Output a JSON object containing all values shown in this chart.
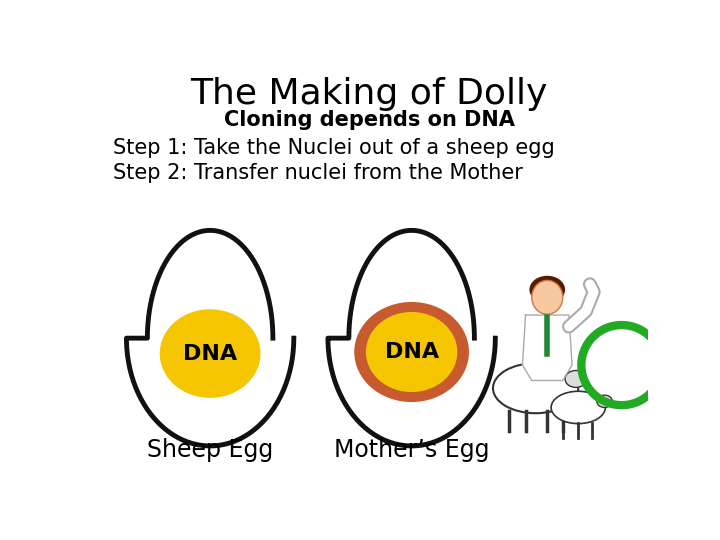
{
  "title": "The Making of Dolly",
  "subtitle": "Cloning depends on DNA",
  "step1": "Step 1: Take the Nuclei out of a sheep egg",
  "step2": "Step 2: Transfer nuclei from the Mother",
  "sheep_egg_label": "Sheep Egg",
  "mother_egg_label": "Mother’s Egg",
  "dna_label": "DNA",
  "background_color": "#ffffff",
  "egg_border_color": "#111111",
  "egg_yolk_color": "#f5c500",
  "egg2_ring_color": "#c85a30",
  "title_fontsize": 26,
  "subtitle_fontsize": 15,
  "step_fontsize": 15,
  "label_fontsize": 17,
  "dna_fontsize": 16
}
